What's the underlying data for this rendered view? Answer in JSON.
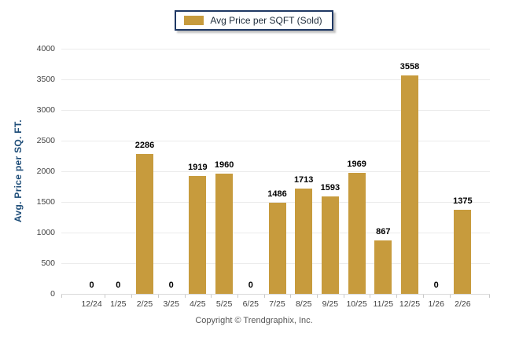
{
  "legend": {
    "label": "Avg Price per SQFT (Sold)"
  },
  "footer": {
    "copyright": "Copyright © Trendgraphix, Inc."
  },
  "colors": {
    "bar": "#C79B3D",
    "legend_border": "#1F3864",
    "axis_title": "#1F4E79",
    "tick_label": "#404040",
    "value_label": "#000000",
    "gridline": "#EBEBEB",
    "copyright": "#595959"
  },
  "chart_data": {
    "type": "bar",
    "title": "",
    "xlabel": "",
    "ylabel": "Avg. Price per SQ. FT.",
    "categories": [
      "12/24",
      "1/25",
      "2/25",
      "3/25",
      "4/25",
      "5/25",
      "6/25",
      "7/25",
      "8/25",
      "9/25",
      "10/25",
      "11/25",
      "12/25",
      "1/26",
      "2/26"
    ],
    "series": [
      {
        "name": "Avg Price per SQFT (Sold)",
        "values": [
          0,
          0,
          2286,
          0,
          1919,
          1960,
          0,
          1486,
          1713,
          1593,
          1969,
          867,
          3558,
          0,
          1375
        ]
      }
    ],
    "ylim": [
      0,
      4000
    ],
    "ytick_step": 500,
    "grid": true,
    "data_labels": true,
    "legend_position": "top-center",
    "bar_color": "#C79B3D"
  }
}
